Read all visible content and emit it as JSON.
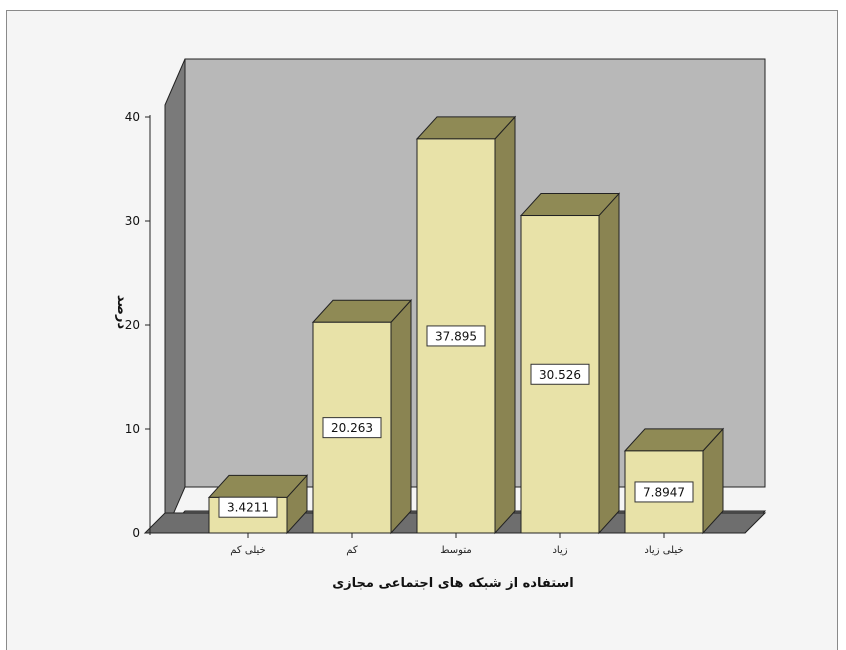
{
  "chart_data": {
    "type": "bar",
    "categories": [
      "خیلی کم",
      "کم",
      "متوسط",
      "زیاد",
      "خیلی زیاد"
    ],
    "values": [
      3.4211,
      20.263,
      37.895,
      30.526,
      7.8947
    ],
    "value_labels": [
      "3.4211",
      "20.263",
      "37.895",
      "30.526",
      "7.8947"
    ],
    "xlabel": "استفاده از شبکه های اجتماعی مجازی",
    "ylabel": "درصد",
    "ylim": [
      0,
      40
    ],
    "yticks": [
      0,
      10,
      20,
      30,
      40
    ],
    "grid": false,
    "legend": "none",
    "three_d": true,
    "colors": {
      "bar_front": "#e8e2a8",
      "bar_side": "#8a8452",
      "bar_top": "#8f8a55",
      "plot_back": "#b8b8b8",
      "plot_floor": "#6e6e6e",
      "plot_wall": "#7a7a7a"
    }
  }
}
